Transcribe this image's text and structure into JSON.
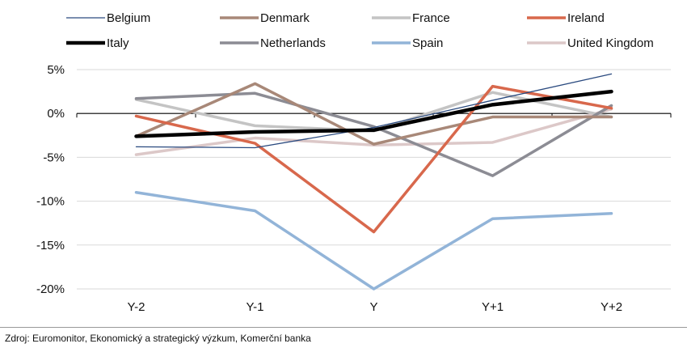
{
  "chart_data": {
    "type": "line",
    "categories": [
      "Y-2",
      "Y-1",
      "Y",
      "Y+1",
      "Y+2"
    ],
    "ylim": [
      -20,
      5
    ],
    "yticks": [
      5,
      0,
      -5,
      -10,
      -15,
      -20
    ],
    "ytick_labels": [
      "5%",
      "0%",
      "-5%",
      "-10%",
      "-15%",
      "-20%"
    ],
    "grid": true,
    "legend_position": "top",
    "series": [
      {
        "name": "Belgium",
        "color": "#2a4a7f",
        "values": [
          -3.8,
          -3.9,
          -1.6,
          1.5,
          4.5
        ]
      },
      {
        "name": "Denmark",
        "color": "#a88878",
        "values": [
          -2.6,
          3.4,
          -3.5,
          -0.4,
          -0.4
        ]
      },
      {
        "name": "France",
        "color": "#c4c4c4",
        "values": [
          1.6,
          -1.4,
          -2.0,
          2.4,
          -0.4
        ]
      },
      {
        "name": "Ireland",
        "color": "#d8684c",
        "values": [
          -0.3,
          -3.4,
          -13.5,
          3.1,
          0.6
        ]
      },
      {
        "name": "Italy",
        "color": "#000000",
        "values": [
          -2.6,
          -2.1,
          -1.9,
          1.0,
          2.5
        ]
      },
      {
        "name": "Netherlands",
        "color": "#8c8c94",
        "values": [
          1.7,
          2.3,
          -1.5,
          -7.1,
          0.9
        ]
      },
      {
        "name": "Spain",
        "color": "#92b4d8",
        "values": [
          -9.0,
          -11.1,
          -20.0,
          -12.0,
          -11.4
        ]
      },
      {
        "name": "United Kingdom",
        "color": "#dcc8c8",
        "values": [
          -4.7,
          -2.8,
          -3.6,
          -3.3,
          0.5
        ]
      }
    ]
  },
  "source_text": "Zdroj: Euromonitor, Ekonomický a strategický výzkum, Komerční banka"
}
